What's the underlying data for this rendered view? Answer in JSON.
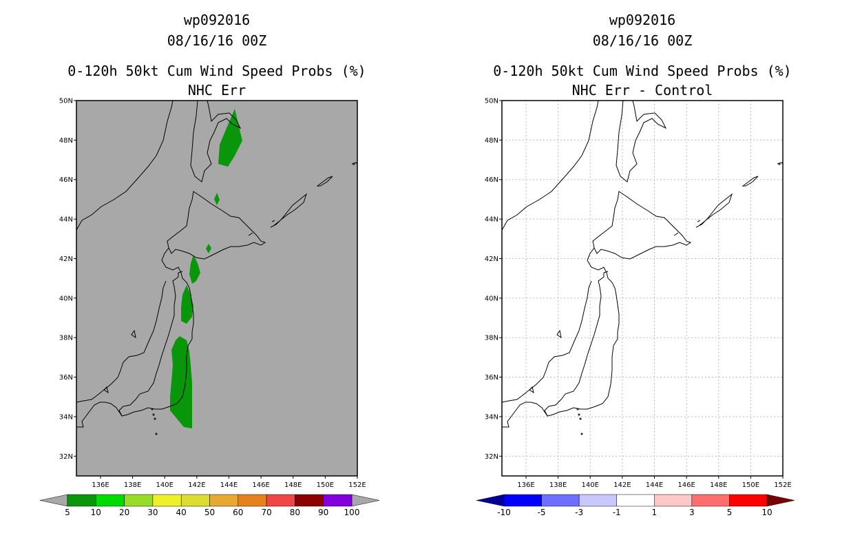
{
  "left_panel": {
    "title_line1": "wp092016",
    "title_line2": "08/16/16 00Z",
    "title_line3": "0-120h 50kt Cum Wind Speed Probs (%)",
    "title_line4": "NHC Err",
    "background_color": "#a8a8a8",
    "prob_fill_color": "#0a960a"
  },
  "right_panel": {
    "title_line1": "wp092016",
    "title_line2": "08/16/16 00Z",
    "title_line3": "0-120h 50kt Cum Wind Speed Probs (%)",
    "title_line4": "NHC Err - Control",
    "background_color": "#ffffff",
    "grid": true
  },
  "map": {
    "lat_range": [
      31,
      50
    ],
    "lon_range": [
      134.5,
      152
    ],
    "lat_ticks": [
      "32N",
      "34N",
      "36N",
      "38N",
      "40N",
      "42N",
      "44N",
      "46N",
      "48N",
      "50N"
    ],
    "lon_ticks": [
      "136E",
      "138E",
      "140E",
      "142E",
      "144E",
      "146E",
      "148E",
      "150E",
      "152E"
    ]
  },
  "left_colorbar": {
    "labels": [
      "5",
      "10",
      "20",
      "30",
      "40",
      "50",
      "60",
      "70",
      "80",
      "90",
      "100"
    ],
    "colors": [
      "#0a960a",
      "#00dc00",
      "#96dc28",
      "#f0f028",
      "#dcdc32",
      "#e6aa32",
      "#e6821e",
      "#f04646",
      "#8c0000",
      "#8200dc"
    ],
    "end_color": "#a8a8a8"
  },
  "right_colorbar": {
    "labels": [
      "-10",
      "-5",
      "-3",
      "-1",
      "1",
      "3",
      "5",
      "10"
    ],
    "colors": [
      "#0000ff",
      "#6e6eff",
      "#c8c8ff",
      "#ffffff",
      "#ffc8c8",
      "#ff6e6e",
      "#ff0000"
    ],
    "low_end_color": "#000096",
    "high_end_color": "#780000"
  }
}
